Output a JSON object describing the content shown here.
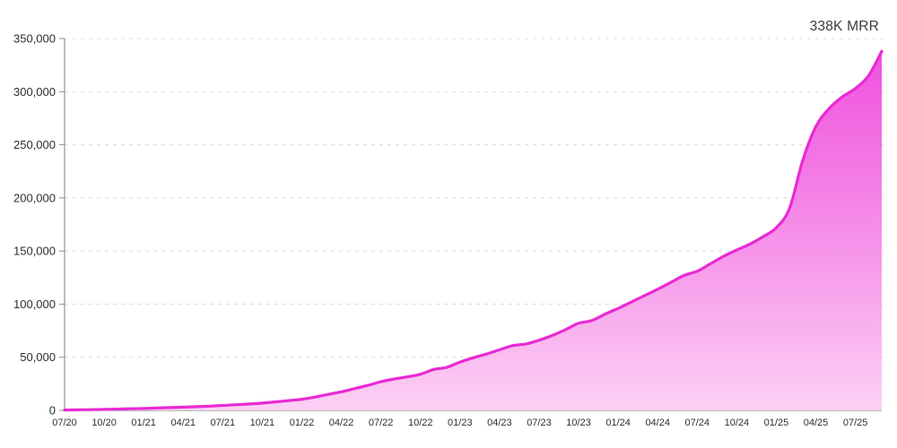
{
  "header": {
    "mrr_label": "338K MRR"
  },
  "chart_data": {
    "type": "area",
    "title": "338K MRR",
    "series_name": "MRR",
    "x": [
      "07/20",
      "08/20",
      "09/20",
      "10/20",
      "11/20",
      "12/20",
      "01/21",
      "02/21",
      "03/21",
      "04/21",
      "05/21",
      "06/21",
      "07/21",
      "08/21",
      "09/21",
      "10/21",
      "11/21",
      "12/21",
      "01/22",
      "02/22",
      "03/22",
      "04/22",
      "05/22",
      "06/22",
      "07/22",
      "08/22",
      "09/22",
      "10/22",
      "11/22",
      "12/22",
      "01/23",
      "02/23",
      "03/23",
      "04/23",
      "05/23",
      "06/23",
      "07/23",
      "08/23",
      "09/23",
      "10/23",
      "11/23",
      "12/23",
      "01/24",
      "02/24",
      "03/24",
      "04/24",
      "05/24",
      "06/24",
      "07/24",
      "08/24",
      "09/24",
      "10/24",
      "11/24",
      "12/24",
      "01/25",
      "02/25",
      "03/25",
      "04/25",
      "05/25",
      "06/25",
      "07/25",
      "08/25",
      "09/25"
    ],
    "series": [
      {
        "name": "MRR",
        "values": [
          300,
          500,
          700,
          900,
          1200,
          1500,
          1800,
          2200,
          2600,
          3000,
          3500,
          4000,
          4600,
          5300,
          6000,
          6800,
          8000,
          9200,
          10500,
          12500,
          15000,
          17500,
          20500,
          23500,
          27000,
          29500,
          31500,
          34000,
          38500,
          40500,
          45500,
          49500,
          53000,
          57000,
          61000,
          62500,
          66000,
          70500,
          76000,
          82000,
          84500,
          90500,
          96000,
          102000,
          108000,
          114000,
          120500,
          127000,
          131000,
          138000,
          145000,
          151000,
          156500,
          163500,
          172000,
          190000,
          235000,
          267000,
          284000,
          295000,
          303000,
          315000,
          338000
        ]
      }
    ],
    "x_tick_every": 3,
    "x_tick_labels": [
      "07/20",
      "10/20",
      "01/21",
      "04/21",
      "07/21",
      "10/21",
      "01/22",
      "04/22",
      "07/22",
      "10/22",
      "01/23",
      "04/23",
      "07/23",
      "10/23",
      "01/24",
      "04/24",
      "07/24",
      "10/24",
      "01/25",
      "04/25",
      "07/25"
    ],
    "y_ticks": [
      0,
      50000,
      100000,
      150000,
      200000,
      250000,
      300000,
      350000
    ],
    "y_tick_labels": [
      "0",
      "50,000",
      "100,000",
      "150,000",
      "200,000",
      "250,000",
      "300,000",
      "350,000"
    ],
    "ylim": [
      0,
      350000
    ],
    "grid": "horizontal-dashed",
    "legend": "none",
    "colors": {
      "line": "#e92ad3",
      "fill_top": "#ee3eda",
      "fill_bottom": "#fcd1f4",
      "grid": "#d9d9d9",
      "axis": "#919191",
      "text": "#2e2e2e",
      "badge_text": "#3c3c3c"
    }
  }
}
